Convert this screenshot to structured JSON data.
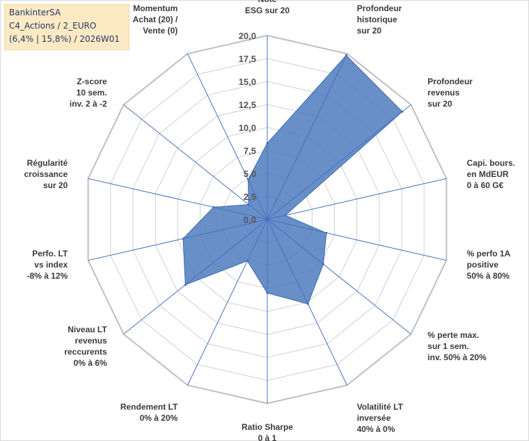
{
  "title_box": {
    "line1": "BankinterSA",
    "line2": "C4_Actions / 2_EURO",
    "line3": "(6,4% | 15,8%) / 2026W01"
  },
  "chart_data": {
    "type": "radar",
    "r_max": 20,
    "ticks": [
      "0,0",
      "2,5",
      "5,0",
      "7,5",
      "10,0",
      "12,5",
      "15,0",
      "17,5",
      "20,0"
    ],
    "axes": [
      [
        "Note",
        "ESG sur 20"
      ],
      [
        "Profondeur",
        "historique",
        "sur 20"
      ],
      [
        "Profondeur",
        "revenus",
        "sur 20"
      ],
      [
        "Capi. bours.",
        "en MdEUR",
        "0 à 60 G€"
      ],
      [
        "% perfo 1A",
        "positive",
        "50% à 80%"
      ],
      [
        "% perte max.",
        "sur 1 sem.",
        "inv. 50% à 20%"
      ],
      [
        "Volatilité LT",
        "inversée",
        "40% à 0%"
      ],
      [
        "Ratio Sharpe",
        "0 à 1"
      ],
      [
        "Rendement LT",
        "0% à 20%"
      ],
      [
        "Niveau LT",
        "revenus",
        "reccurents",
        "0% à 6%"
      ],
      [
        "Perfo. LT",
        "vs index",
        "-8% à 12%"
      ],
      [
        "Régularité",
        "croissance",
        "sur 20"
      ],
      [
        "Z-score",
        "10 sem.",
        "inv. 2 à -2"
      ],
      [
        "Momentum",
        "Achat (20) /",
        "Vente (0)"
      ]
    ],
    "values": [
      8.3,
      19.8,
      18.8,
      2.0,
      6.6,
      7.8,
      10.2,
      8.0,
      5.0,
      11.4,
      9.4,
      6.0,
      2.6,
      4.8
    ],
    "series_color": "#4e7bbd",
    "spoke_color": "#4472c4",
    "grid_color": "#d0d0d0",
    "outer_ring_color": "#bfbfbf"
  }
}
